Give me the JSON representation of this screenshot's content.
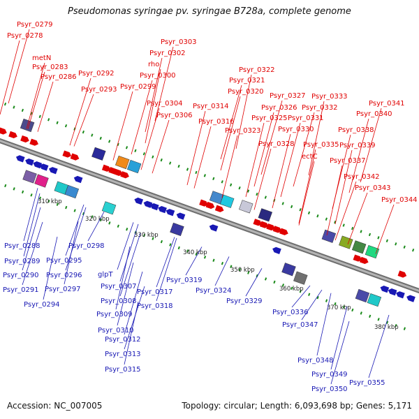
{
  "title": "Pseudomonas syringae pv. syringae B728a, complete genome",
  "footer": {
    "accession": "Accession: NC_007005",
    "summary": "Topology: circular; Length: 6,093,698 bp; Genes: 5,171"
  },
  "colors": {
    "forward_strand": "#e00000",
    "reverse_strand": "#1818b4",
    "backbone": "#888888",
    "ticks": "#1a8a1a"
  },
  "kbp_ticks": [
    "310 kbp",
    "320 kbp",
    "330 kbp",
    "340 kbp",
    "350 kbp",
    "360 kbp",
    "370 kbp",
    "380 kbp"
  ],
  "top_labels": [
    "Psyr_0279",
    "Psyr_0278",
    "metN",
    "Psyr_0283",
    "Psyr_0286",
    "Psyr_0292",
    "Psyr_0293",
    "Psyr_0303",
    "Psyr_0302",
    "rho",
    "Psyr_0300",
    "Psyr_0299",
    "Psyr_0304",
    "Psyr_0306",
    "Psyr_0322",
    "Psyr_0321",
    "Psyr_0320",
    "Psyr_0314",
    "Psyr_0316",
    "Psyr_0323",
    "Psyr_0327",
    "Psyr_0326",
    "Psyr_0325",
    "Psyr_0328",
    "Psyr_0333",
    "Psyr_0332",
    "Psyr_0331",
    "Psyr_0330",
    "Psyr_0335",
    "ectC",
    "Psyr_0341",
    "Psyr_0340",
    "Psyr_0338",
    "Psyr_0339",
    "Psyr_0337",
    "Psyr_0342",
    "Psyr_0343",
    "Psyr_0344"
  ],
  "bottom_labels": [
    "Psyr_0288",
    "Psyr_0289",
    "Psyr_0290",
    "Psyr_0291",
    "Psyr_0294",
    "Psyr_0298",
    "Psyr_0295",
    "Psyr_0296",
    "Psyr_0297",
    "glpT",
    "Psyr_0307",
    "Psyr_0308",
    "Psyr_0309",
    "Psyr_0310",
    "Psyr_0312",
    "Psyr_0313",
    "Psyr_0315",
    "Psyr_0319",
    "Psyr_0317",
    "Psyr_0318",
    "Psyr_0324",
    "Psyr_0329",
    "Psyr_0336",
    "Psyr_0347",
    "Psyr_0348",
    "Psyr_0349",
    "Psyr_0350",
    "Psyr_0355"
  ]
}
